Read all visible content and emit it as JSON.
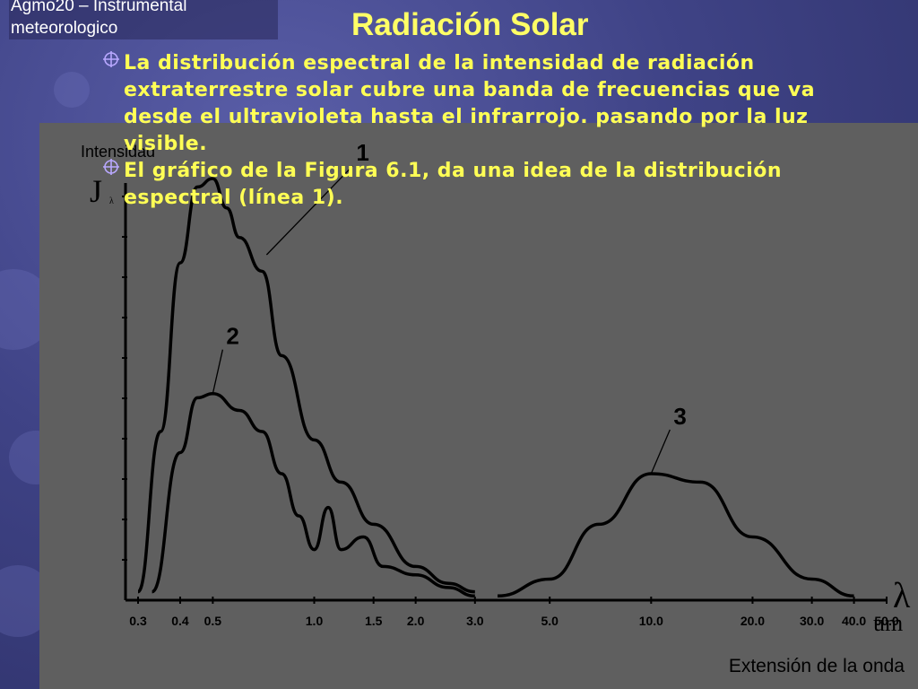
{
  "header": {
    "course_line1": "Agmo20 – Instrumental",
    "course_line2": "meteorologico",
    "title": "Radiación Solar"
  },
  "bullets": [
    {
      "text": "La distribución espectral de la intensidad de radiación extraterrestre solar cubre una banda de frecuencias que va desde el ultravioleta hasta el infrarrojo. pasando por la luz visible."
    },
    {
      "text": "El gráfico de la Figura 6.1, da una idea de la distribución espectral (línea 1)."
    }
  ],
  "colors": {
    "background": "#3f4386",
    "title": "#ffff66",
    "bullet_text": "#ffff55",
    "figure_bg": "#5f5f5f",
    "curve": "#000000"
  },
  "chart_data": {
    "type": "line",
    "title": "",
    "ylabel": "Intensidad",
    "y_symbol": "J",
    "y_subscript": "λ",
    "x_symbol": "λ",
    "x_unit": "um",
    "xlabel": "Extensión de la onda",
    "x_scale": "log",
    "x_ticks": [
      "0.3",
      "0.4",
      "0.5",
      "1.0",
      "1.5",
      "2.0",
      "3.0",
      "5.0",
      "10.0",
      "20.0",
      "30.0",
      "40.0",
      "50.0"
    ],
    "grid": false,
    "series": [
      {
        "name": "1",
        "x": [
          0.3,
          0.35,
          0.4,
          0.45,
          0.5,
          0.55,
          0.6,
          0.7,
          0.8,
          1.0,
          1.2,
          1.5,
          2.0,
          2.5,
          3.0
        ],
        "y": [
          2,
          40,
          80,
          98,
          100,
          93,
          86,
          78,
          58,
          38,
          28,
          18,
          8,
          4,
          2
        ]
      },
      {
        "name": "2",
        "x": [
          0.33,
          0.4,
          0.45,
          0.5,
          0.6,
          0.7,
          0.8,
          0.9,
          1.0,
          1.1,
          1.2,
          1.4,
          1.6,
          2.0,
          2.5,
          3.0
        ],
        "y": [
          2,
          35,
          48,
          49,
          45,
          40,
          30,
          20,
          12,
          22,
          12,
          15,
          8,
          6,
          3,
          1
        ]
      },
      {
        "name": "3",
        "x": [
          3.5,
          5.0,
          7.0,
          10.0,
          14.0,
          20.0,
          30.0,
          40.0
        ],
        "y": [
          1,
          5,
          18,
          30,
          28,
          15,
          5,
          1
        ]
      }
    ],
    "curve_labels": [
      "1",
      "2",
      "3"
    ]
  }
}
